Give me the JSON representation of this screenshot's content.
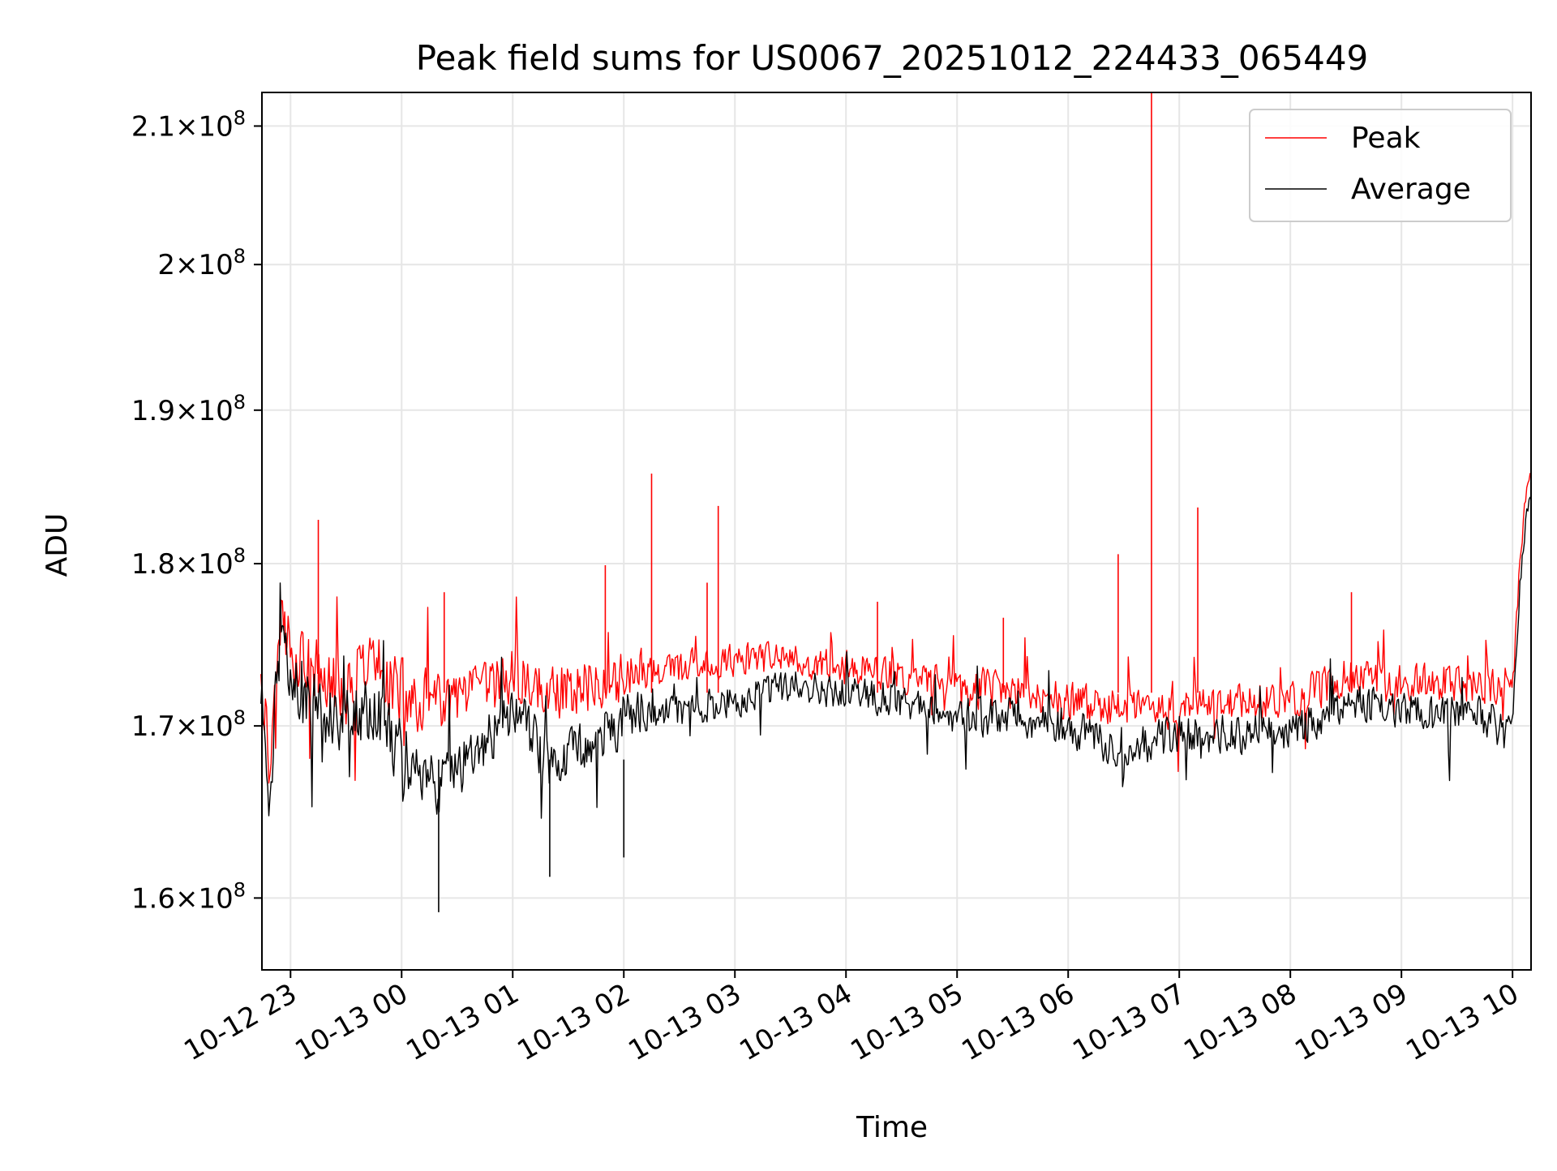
{
  "chart_data": {
    "type": "line",
    "title": "Peak field sums for US0067_20251012_224433_065449",
    "xlabel": "Time",
    "ylabel": "ADU",
    "x_axis": "datetime",
    "x_range": [
      "2025-10-12 22:44:33",
      "2025-10-13 10:10:00"
    ],
    "y_scale": "log",
    "ylim": [
      156000000,
      212500000
    ],
    "y_ticks": [
      {
        "value": 160000000,
        "mantissa": "1.6",
        "exp": "8"
      },
      {
        "value": 170000000,
        "mantissa": "1.7",
        "exp": "8"
      },
      {
        "value": 180000000,
        "mantissa": "1.8",
        "exp": "8"
      },
      {
        "value": 190000000,
        "mantissa": "1.9",
        "exp": "8"
      },
      {
        "value": 200000000,
        "mantissa": "2",
        "exp": "8"
      },
      {
        "value": 210000000,
        "mantissa": "2.1",
        "exp": "8"
      }
    ],
    "x_ticks": [
      {
        "value": "2025-10-12 23:00",
        "label": "10-12 23"
      },
      {
        "value": "2025-10-13 00:00",
        "label": "10-13 00"
      },
      {
        "value": "2025-10-13 01:00",
        "label": "10-13 01"
      },
      {
        "value": "2025-10-13 02:00",
        "label": "10-13 02"
      },
      {
        "value": "2025-10-13 03:00",
        "label": "10-13 03"
      },
      {
        "value": "2025-10-13 04:00",
        "label": "10-13 04"
      },
      {
        "value": "2025-10-13 05:00",
        "label": "10-13 05"
      },
      {
        "value": "2025-10-13 06:00",
        "label": "10-13 06"
      },
      {
        "value": "2025-10-13 07:00",
        "label": "10-13 07"
      },
      {
        "value": "2025-10-13 08:00",
        "label": "10-13 08"
      },
      {
        "value": "2025-10-13 09:00",
        "label": "10-13 09"
      },
      {
        "value": "2025-10-13 10:00",
        "label": "10-13 10"
      }
    ],
    "grid": true,
    "legend_position": "top-right",
    "series": [
      {
        "name": "Peak",
        "color": "#ff0000",
        "points": [
          {
            "x": "2025-10-12 22:44",
            "y": 174000000
          },
          {
            "x": "2025-10-12 22:49",
            "y": 167000000
          },
          {
            "x": "2025-10-12 22:53",
            "y": 177000000
          },
          {
            "x": "2025-10-12 23:00",
            "y": 175000000
          },
          {
            "x": "2025-10-12 23:15",
            "y": 173000000
          },
          {
            "x": "2025-10-12 23:30",
            "y": 172000000
          },
          {
            "x": "2025-10-12 23:45",
            "y": 174000000
          },
          {
            "x": "2025-10-13 00:00",
            "y": 172000000
          },
          {
            "x": "2025-10-13 00:20",
            "y": 171000000
          },
          {
            "x": "2025-10-13 00:40",
            "y": 172000000
          },
          {
            "x": "2025-10-13 01:00",
            "y": 173000000
          },
          {
            "x": "2025-10-13 01:20",
            "y": 172000000
          },
          {
            "x": "2025-10-13 01:40",
            "y": 172500000
          },
          {
            "x": "2025-10-13 02:00",
            "y": 173000000
          },
          {
            "x": "2025-10-13 02:30",
            "y": 173500000
          },
          {
            "x": "2025-10-13 03:00",
            "y": 174000000
          },
          {
            "x": "2025-10-13 03:30",
            "y": 174000000
          },
          {
            "x": "2025-10-13 04:00",
            "y": 173500000
          },
          {
            "x": "2025-10-13 04:30",
            "y": 173000000
          },
          {
            "x": "2025-10-13 05:00",
            "y": 172500000
          },
          {
            "x": "2025-10-13 05:30",
            "y": 172000000
          },
          {
            "x": "2025-10-13 06:00",
            "y": 171500000
          },
          {
            "x": "2025-10-13 06:30",
            "y": 171000000
          },
          {
            "x": "2025-10-13 07:00",
            "y": 171000000
          },
          {
            "x": "2025-10-13 07:30",
            "y": 171500000
          },
          {
            "x": "2025-10-13 08:00",
            "y": 171500000
          },
          {
            "x": "2025-10-13 08:30",
            "y": 173000000
          },
          {
            "x": "2025-10-13 09:00",
            "y": 172500000
          },
          {
            "x": "2025-10-13 09:30",
            "y": 172500000
          },
          {
            "x": "2025-10-13 10:00",
            "y": 172500000
          },
          {
            "x": "2025-10-13 10:03",
            "y": 178000000
          },
          {
            "x": "2025-10-13 10:07",
            "y": 184000000
          },
          {
            "x": "2025-10-13 10:10",
            "y": 186000000
          }
        ],
        "spikes": [
          {
            "x": "2025-10-12 23:15",
            "y": 182800000
          },
          {
            "x": "2025-10-13 00:23",
            "y": 178200000
          },
          {
            "x": "2025-10-13 01:50",
            "y": 179900000
          },
          {
            "x": "2025-10-13 02:15",
            "y": 185800000
          },
          {
            "x": "2025-10-13 02:45",
            "y": 178800000
          },
          {
            "x": "2025-10-13 02:51",
            "y": 183700000
          },
          {
            "x": "2025-10-13 04:17",
            "y": 177600000
          },
          {
            "x": "2025-10-13 05:25",
            "y": 176600000
          },
          {
            "x": "2025-10-13 06:27",
            "y": 180600000
          },
          {
            "x": "2025-10-13 06:45",
            "y": 212500000
          },
          {
            "x": "2025-10-13 07:10",
            "y": 183600000
          },
          {
            "x": "2025-10-13 08:33",
            "y": 178200000
          }
        ]
      },
      {
        "name": "Average",
        "color": "#000000",
        "points": [
          {
            "x": "2025-10-12 22:44",
            "y": 172000000
          },
          {
            "x": "2025-10-12 22:49",
            "y": 165500000
          },
          {
            "x": "2025-10-12 22:53",
            "y": 175000000
          },
          {
            "x": "2025-10-12 23:00",
            "y": 173000000
          },
          {
            "x": "2025-10-12 23:15",
            "y": 171000000
          },
          {
            "x": "2025-10-12 23:30",
            "y": 170500000
          },
          {
            "x": "2025-10-12 23:45",
            "y": 171000000
          },
          {
            "x": "2025-10-13 00:00",
            "y": 168500000
          },
          {
            "x": "2025-10-13 00:20",
            "y": 166000000
          },
          {
            "x": "2025-10-13 00:40",
            "y": 168500000
          },
          {
            "x": "2025-10-13 01:00",
            "y": 171000000
          },
          {
            "x": "2025-10-13 01:20",
            "y": 168000000
          },
          {
            "x": "2025-10-13 01:40",
            "y": 169000000
          },
          {
            "x": "2025-10-13 02:00",
            "y": 170500000
          },
          {
            "x": "2025-10-13 02:30",
            "y": 171000000
          },
          {
            "x": "2025-10-13 03:00",
            "y": 171500000
          },
          {
            "x": "2025-10-13 03:30",
            "y": 172500000
          },
          {
            "x": "2025-10-13 04:00",
            "y": 172000000
          },
          {
            "x": "2025-10-13 04:30",
            "y": 171500000
          },
          {
            "x": "2025-10-13 05:00",
            "y": 170500000
          },
          {
            "x": "2025-10-13 05:30",
            "y": 170500000
          },
          {
            "x": "2025-10-13 06:00",
            "y": 170000000
          },
          {
            "x": "2025-10-13 06:30",
            "y": 168500000
          },
          {
            "x": "2025-10-13 07:00",
            "y": 169500000
          },
          {
            "x": "2025-10-13 07:30",
            "y": 169500000
          },
          {
            "x": "2025-10-13 08:00",
            "y": 169500000
          },
          {
            "x": "2025-10-13 08:30",
            "y": 171500000
          },
          {
            "x": "2025-10-13 09:00",
            "y": 171000000
          },
          {
            "x": "2025-10-13 09:30",
            "y": 170500000
          },
          {
            "x": "2025-10-13 10:00",
            "y": 170500000
          },
          {
            "x": "2025-10-13 10:03",
            "y": 176500000
          },
          {
            "x": "2025-10-13 10:07",
            "y": 182500000
          },
          {
            "x": "2025-10-13 10:10",
            "y": 184500000
          }
        ],
        "dips": [
          {
            "x": "2025-10-13 00:20",
            "y": 159200000
          },
          {
            "x": "2025-10-13 01:20",
            "y": 161200000
          },
          {
            "x": "2025-10-13 02:00",
            "y": 162300000
          }
        ]
      }
    ]
  }
}
